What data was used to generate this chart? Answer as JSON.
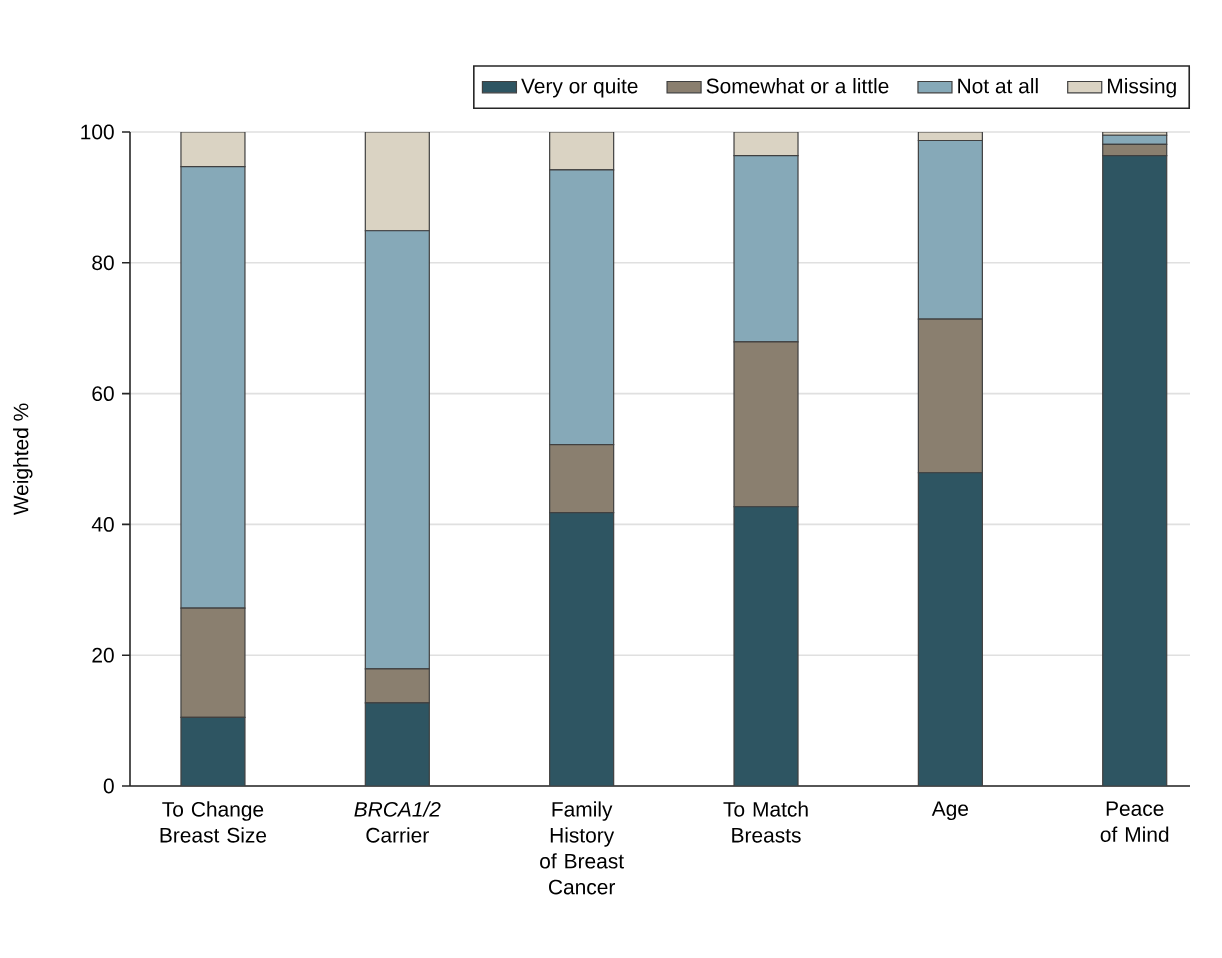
{
  "chart_data": {
    "type": "bar",
    "stacked": true,
    "ylabel": "Weighted %",
    "categories": [
      "To Change Breast Size",
      "*BRCA1/2* Carrier",
      "Family History of Breast Cancer",
      "To Match Breasts",
      "Age",
      "Peace of Mind"
    ],
    "series": [
      {
        "name": "Very or quite",
        "color": "#2e5562",
        "values": [
          10.5,
          12.7,
          41.8,
          42.7,
          47.9,
          96.4
        ]
      },
      {
        "name": "Somewhat or a little",
        "color": "#8a7f6f",
        "values": [
          16.7,
          5.2,
          10.4,
          25.2,
          23.5,
          1.7
        ]
      },
      {
        "name": "Not at all",
        "color": "#86a9b8",
        "values": [
          67.5,
          67.0,
          42.0,
          28.5,
          27.3,
          1.4
        ]
      },
      {
        "name": "Missing",
        "color": "#dad3c3",
        "values": [
          5.3,
          15.1,
          5.8,
          3.6,
          1.3,
          0.5
        ]
      }
    ],
    "ylim": [
      0,
      100
    ],
    "yticks": [
      0,
      20,
      40,
      60,
      80,
      100
    ],
    "grid": "y",
    "legend": "top"
  }
}
